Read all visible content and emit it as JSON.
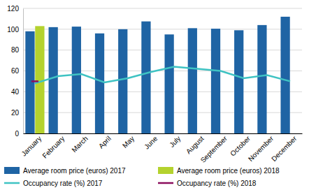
{
  "chart_data": {
    "type": "bar",
    "categories": [
      "January",
      "February",
      "March",
      "April",
      "May",
      "June",
      "July",
      "August",
      "September",
      "October",
      "November",
      "December"
    ],
    "series": [
      {
        "name": "Average room price (euros) 2017",
        "type": "bar",
        "color": "#1f64a4",
        "values": [
          98,
          102,
          102.5,
          96,
          100,
          107.5,
          95,
          101,
          100.5,
          99,
          104,
          112
        ]
      },
      {
        "name": "Average room price (euros) 2018",
        "type": "bar",
        "color": "#b4d22e",
        "values": [
          103,
          null,
          null,
          null,
          null,
          null,
          null,
          null,
          null,
          null,
          null,
          null
        ]
      },
      {
        "name": "Occupancy rate (%) 2017",
        "type": "line",
        "color": "#3fc3c3",
        "values": [
          48,
          55,
          57,
          49,
          53,
          59,
          64,
          62,
          60,
          53,
          56,
          50
        ]
      },
      {
        "name": "Occupancy rate (%) 2018",
        "type": "line",
        "color": "#8b0d5c",
        "marker": "dash",
        "values": [
          50,
          null,
          null,
          null,
          null,
          null,
          null,
          null,
          null,
          null,
          null,
          null
        ]
      }
    ],
    "ylim": [
      0,
      120
    ],
    "yticks": [
      0,
      20,
      40,
      60,
      80,
      100,
      120
    ],
    "grid": true,
    "legend": "bottom"
  }
}
